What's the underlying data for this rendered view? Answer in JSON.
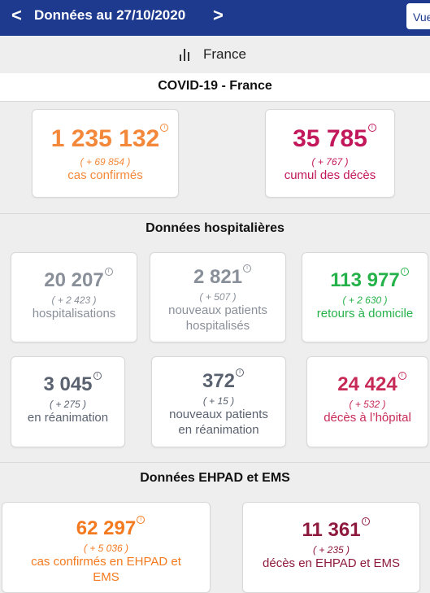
{
  "header": {
    "title": "Données au 27/10/2020",
    "prev_icon": "chevron-left-icon",
    "next_icon": "chevron-right-icon",
    "prev_glyph": "<",
    "next_glyph": ">",
    "view_button_label": "Vue"
  },
  "country": {
    "icon": "bar-chart-icon",
    "label": "France"
  },
  "overview": {
    "title": "COVID-19 - France",
    "cards": [
      {
        "value": "1 235 132",
        "delta": "( + 69 854 )",
        "label": "cas confirmés",
        "color": "#f4883a"
      },
      {
        "value": "35 785",
        "delta": "( + 767 )",
        "label": "cumul des décès",
        "color": "#c2185b"
      }
    ]
  },
  "hospital": {
    "title": "Données hospitalières",
    "cards": [
      {
        "value": "20 207",
        "delta": "( + 2 423 )",
        "label": "hospitalisations"
      },
      {
        "value": "2 821",
        "delta": "( + 507 )",
        "label1": "nouveaux patients",
        "label2": "hospitalisés"
      },
      {
        "value": "113 977",
        "delta": "( + 2 630 )",
        "label": "retours à domicile"
      },
      {
        "value": "3 045",
        "delta": "( + 275 )",
        "label": "en réanimation"
      },
      {
        "value": "372",
        "delta": "( + 15 )",
        "label1": "nouveaux patients",
        "label2": "en réanimation"
      },
      {
        "value": "24 424",
        "delta": "( + 532 )",
        "label": "décès à l’hôpital"
      }
    ]
  },
  "ehpad": {
    "title": "Données EHPAD et EMS",
    "cards": [
      {
        "value": "62 297",
        "delta": "( + 5 036 )",
        "label1": "cas confirmés en EHPAD et",
        "label2": "EMS"
      },
      {
        "value": "11 361",
        "delta": "( + 235 )",
        "label": "décès en EHPAD et EMS"
      }
    ]
  },
  "info_glyph": "i",
  "colors": {
    "header_bg": "#1e3a8f",
    "orange": "#f4883a",
    "crimson": "#c2185b",
    "gray": "#8a9099",
    "dark_gray": "#5a6270",
    "green": "#26b24a",
    "pink": "#c72a57",
    "maroon": "#8e1a3e"
  }
}
